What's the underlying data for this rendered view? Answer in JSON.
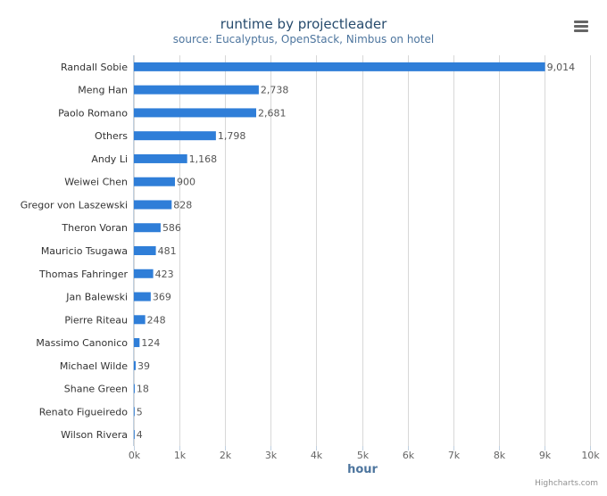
{
  "chart_data": {
    "type": "bar",
    "orientation": "horizontal",
    "title": "runtime by projectleader",
    "subtitle": "source: Eucalyptus, OpenStack, Nimbus on hotel",
    "xlabel": "hour",
    "ylabel": "",
    "xlim": [
      0,
      10000
    ],
    "ticks": [
      "0k",
      "1k",
      "2k",
      "3k",
      "4k",
      "5k",
      "6k",
      "7k",
      "8k",
      "9k",
      "10k"
    ],
    "grid": true,
    "legend": false,
    "bar_color": "#2f7ed8",
    "categories": [
      "Randall Sobie",
      "Meng Han",
      "Paolo Romano",
      "Others",
      "Andy Li",
      "Weiwei Chen",
      "Gregor von Laszewski",
      "Theron Voran",
      "Mauricio Tsugawa",
      "Thomas Fahringer",
      "Jan Balewski",
      "Pierre Riteau",
      "Massimo Canonico",
      "Michael Wilde",
      "Shane Green",
      "Renato Figueiredo",
      "Wilson Rivera"
    ],
    "values": [
      9014,
      2738,
      2681,
      1798,
      1168,
      900,
      828,
      586,
      481,
      423,
      369,
      248,
      124,
      39,
      18,
      5,
      4
    ],
    "data_labels": [
      "9,014",
      "2,738",
      "2,681",
      "1,798",
      "1,168",
      "900",
      "828",
      "586",
      "481",
      "423",
      "369",
      "248",
      "124",
      "39",
      "18",
      "5",
      "4"
    ]
  },
  "menu": {
    "icon": "menu-icon"
  },
  "credits": "Highcharts.com"
}
